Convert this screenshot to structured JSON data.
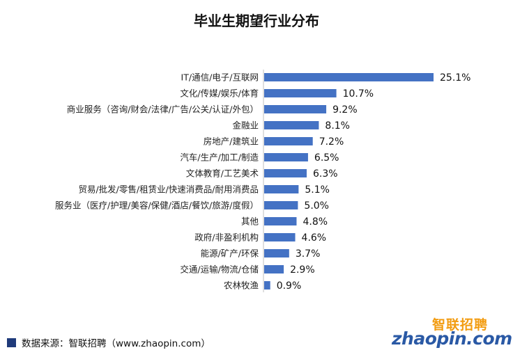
{
  "chart_data": {
    "type": "bar",
    "orientation": "horizontal",
    "title": "毕业生期望行业分布",
    "categories": [
      "IT/通信/电子/互联网",
      "文化/传媒/娱乐/体育",
      "商业服务（咨询/财会/法律/广告/公关/认证/外包）",
      "金融业",
      "房地产/建筑业",
      "汽车/生产/加工/制造",
      "文体教育/工艺美术",
      "贸易/批发/零售/租赁业/快速消费品/耐用消费品",
      "服务业（医疗/护理/美容/保健/酒店/餐饮/旅游/度假）",
      "其他",
      "政府/非盈利机构",
      "能源/矿产/环保",
      "交通/运输/物流/仓储",
      "农林牧渔"
    ],
    "values": [
      25.1,
      10.7,
      9.2,
      8.1,
      7.2,
      6.5,
      6.3,
      5.1,
      5.0,
      4.8,
      4.6,
      3.7,
      2.9,
      0.9
    ],
    "value_labels": [
      "25.1%",
      "10.7%",
      "9.2%",
      "8.1%",
      "7.2%",
      "6.5%",
      "6.3%",
      "5.1%",
      "5.0%",
      "4.8%",
      "4.6%",
      "3.7%",
      "2.9%",
      "0.9%"
    ],
    "xlim": [
      0,
      25.1
    ],
    "grid": false,
    "bar_color": "#4472c4"
  },
  "footer": {
    "source_text": "数据来源：智联招聘（www.zhaopin.com）"
  },
  "logo": {
    "cn_text": "智联招聘",
    "en_text": "zhaopin.com"
  }
}
